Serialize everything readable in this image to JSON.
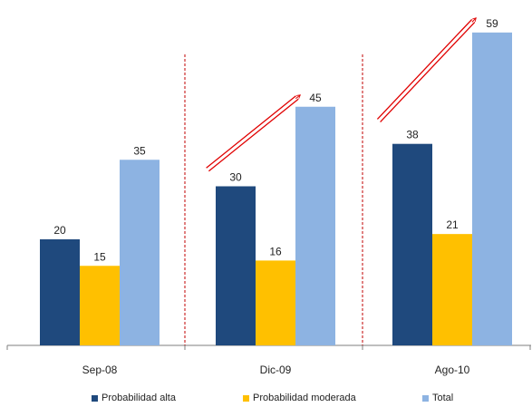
{
  "chart_data": {
    "type": "bar",
    "categories": [
      "Sep-08",
      "Dic-09",
      "Ago-10"
    ],
    "series": [
      {
        "name": "Probabilidad alta",
        "values": [
          20,
          30,
          38
        ],
        "color": "#1f497d"
      },
      {
        "name": "Probabilidad moderada",
        "values": [
          15,
          16,
          21
        ],
        "color": "#ffc000"
      },
      {
        "name": "Total",
        "values": [
          35,
          45,
          59
        ],
        "color": "#8db3e2"
      }
    ],
    "ylim": [
      0,
      65
    ],
    "grid": false,
    "legend": "bottom",
    "separator_color": "#c00000",
    "arrow_color": "#e00000"
  }
}
